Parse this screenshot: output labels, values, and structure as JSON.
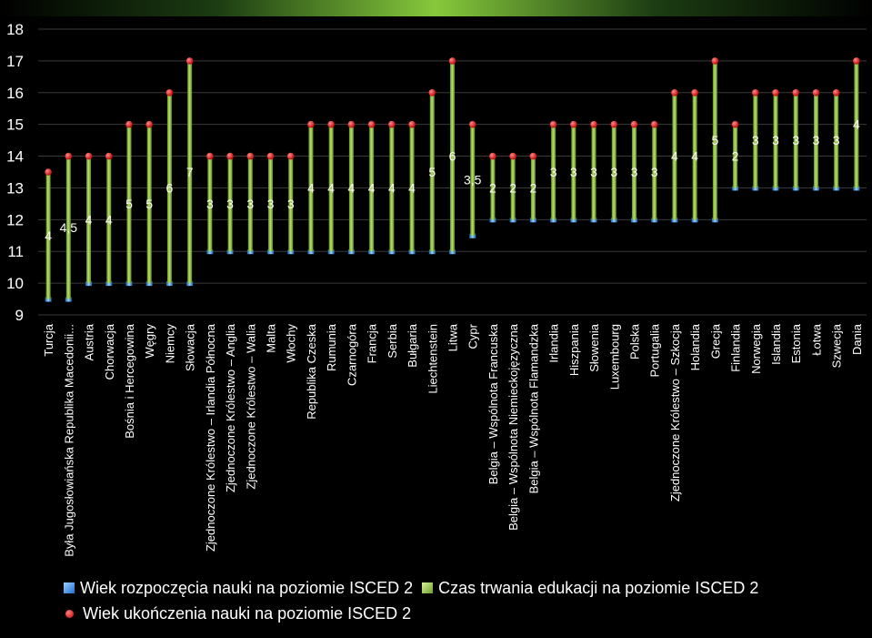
{
  "chart_data": {
    "type": "bar",
    "title": "",
    "ylim": [
      9,
      18
    ],
    "yticks": [
      9,
      10,
      11,
      12,
      13,
      14,
      15,
      16,
      17,
      18
    ],
    "grid": true,
    "legend_position": "bottom",
    "categories": [
      "Turcja",
      "Była Jugosłowiańska Republika Macedonii...",
      "Austria",
      "Chorwacja",
      "Bośnia i Hercegowina",
      "Węgry",
      "Niemcy",
      "Słowacja",
      "Zjednoczone Królestwo – Irlandia Północna",
      "Zjednoczone Królestwo – Anglia",
      "Zjednoczone Królestwo – Walia",
      "Malta",
      "Włochy",
      "Republika Czeska",
      "Rumunia",
      "Czarnogóra",
      "Francja",
      "Serbia",
      "Bułgaria",
      "Liechtenstein",
      "Litwa",
      "Cypr",
      "Belgia – Wspólnota Francuska",
      "Belgia – Wspólnota Niemieckojęzyczna",
      "Belgia – Wspólnota Flamandzka",
      "Irlandia",
      "Hiszpania",
      "Słowenia",
      "Luxembourg",
      "Polska",
      "Portugalia",
      "Zjednoczone Królestwo – Szkocja",
      "Holandia",
      "Grecja",
      "Finlandia",
      "Norwegia",
      "Islandia",
      "Estonia",
      "Łotwa",
      "Szwecja",
      "Dania"
    ],
    "series": [
      {
        "name": "Wiek rozpoczęcia nauki na poziomie ISCED 2",
        "color": "#2a86e0",
        "values": [
          9.5,
          9.5,
          10,
          10,
          10,
          10,
          10,
          10,
          11,
          11,
          11,
          11,
          11,
          11,
          11,
          11,
          11,
          11,
          11,
          11,
          11,
          11.5,
          12,
          12,
          12,
          12,
          12,
          12,
          12,
          12,
          12,
          12,
          12,
          12,
          13,
          13,
          13,
          13,
          13,
          13,
          13
        ]
      },
      {
        "name": "Czas trwania edukacji na poziomie ISCED 2",
        "color": "#86b83a",
        "values": [
          4,
          4.5,
          4,
          4,
          5,
          5,
          6,
          7,
          3,
          3,
          3,
          3,
          3,
          4,
          4,
          4,
          4,
          4,
          4,
          5,
          6,
          3.5,
          2,
          2,
          2,
          3,
          3,
          3,
          3,
          3,
          3,
          4,
          4,
          5,
          2,
          3,
          3,
          3,
          3,
          3,
          4
        ],
        "labels": [
          "4",
          "4,5",
          "4",
          "4",
          "5",
          "5",
          "6",
          "7",
          "3",
          "3",
          "3",
          "3",
          "3",
          "4",
          "4",
          "4",
          "4",
          "4",
          "4",
          "5",
          "6",
          "3,5",
          "2",
          "2",
          "2",
          "3",
          "3",
          "3",
          "3",
          "3",
          "3",
          "4",
          "4",
          "5",
          "2",
          "3",
          "3",
          "3",
          "3",
          "3",
          "4"
        ]
      },
      {
        "name": "Wiek ukończenia nauki na poziomie ISCED 2",
        "color": "#e00000",
        "values": [
          13.5,
          14,
          14,
          14,
          15,
          15,
          16,
          17,
          14,
          14,
          14,
          14,
          14,
          15,
          15,
          15,
          15,
          15,
          15,
          16,
          17,
          15,
          14,
          14,
          14,
          15,
          15,
          15,
          15,
          15,
          15,
          16,
          16,
          17,
          15,
          16,
          16,
          16,
          16,
          16,
          17
        ]
      }
    ]
  }
}
